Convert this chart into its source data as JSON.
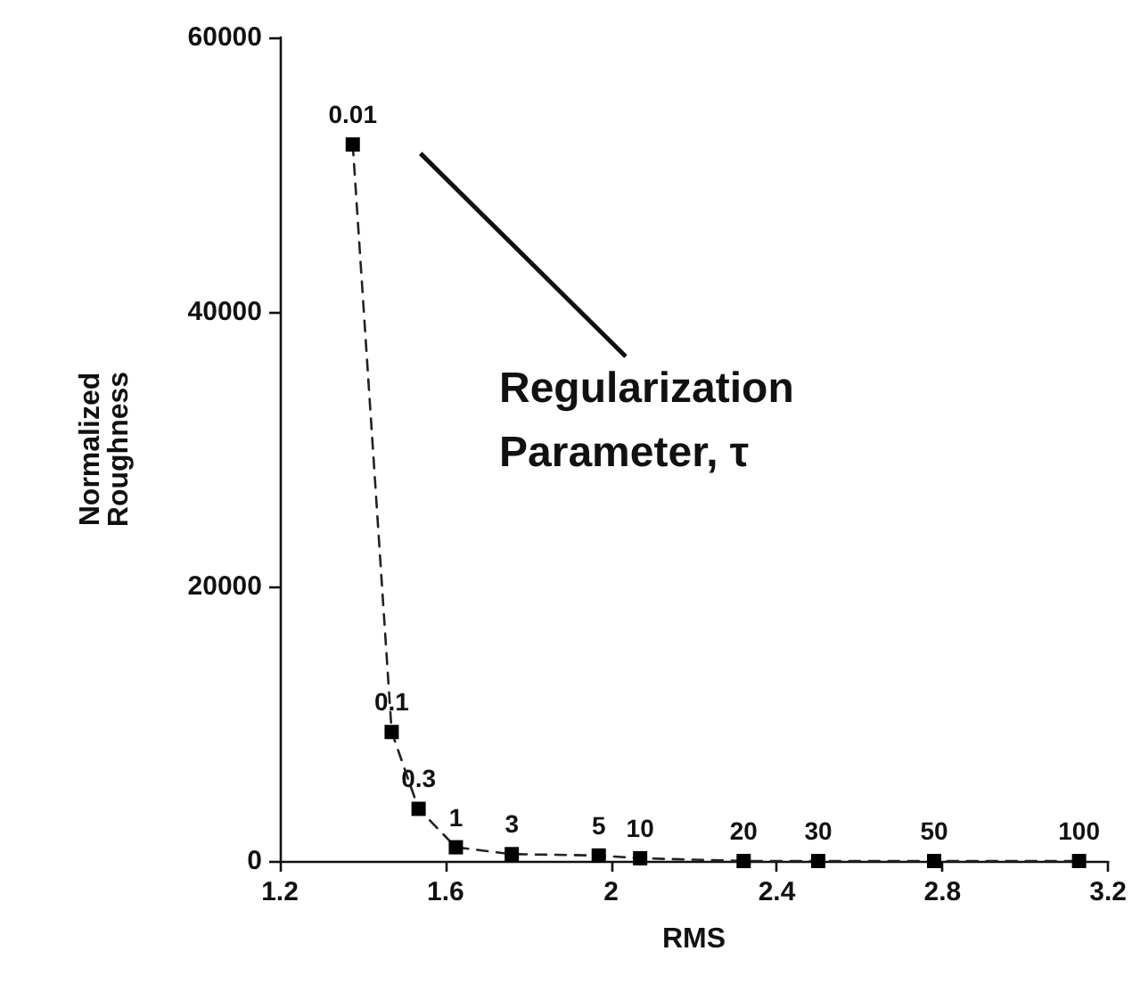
{
  "chart_data": {
    "type": "line",
    "xlabel": "RMS",
    "ylabel": "Normalized\nRoughness",
    "annotations": [
      "Regularization\nParameter, τ",
      {
        "text": "0.01",
        "x": 1.376,
        "y": 52200
      },
      {
        "text": "0.1",
        "x": 1.47,
        "y": 9400
      },
      {
        "text": "0.3",
        "x": 1.535,
        "y": 3800
      },
      {
        "text": "1",
        "x": 1.625,
        "y": 1000
      },
      {
        "text": "3",
        "x": 1.76,
        "y": 500
      },
      {
        "text": "5",
        "x": 1.97,
        "y": 400
      },
      {
        "text": "10",
        "x": 2.07,
        "y": 200
      },
      {
        "text": "20",
        "x": 2.32,
        "y": 0
      },
      {
        "text": "30",
        "x": 2.5,
        "y": 0
      },
      {
        "text": "50",
        "x": 2.78,
        "y": 0
      },
      {
        "text": "100",
        "x": 3.13,
        "y": 0
      }
    ],
    "x": [
      1.376,
      1.47,
      1.535,
      1.625,
      1.76,
      1.97,
      2.07,
      2.32,
      2.5,
      2.78,
      3.13
    ],
    "series": [
      {
        "color": "#222222",
        "values": [
          52200,
          9400,
          3800,
          1000,
          500,
          400,
          200,
          0,
          0,
          0,
          0
        ]
      }
    ],
    "xlim": [
      1.2,
      3.2
    ],
    "xticks": [
      1.2,
      1.6,
      2,
      2.4,
      2.8,
      3.2
    ],
    "ylim": [
      0,
      60000
    ],
    "yticks": [
      0,
      20000,
      40000,
      60000
    ],
    "grid": false,
    "marker": "square",
    "line_style": "dashed"
  }
}
